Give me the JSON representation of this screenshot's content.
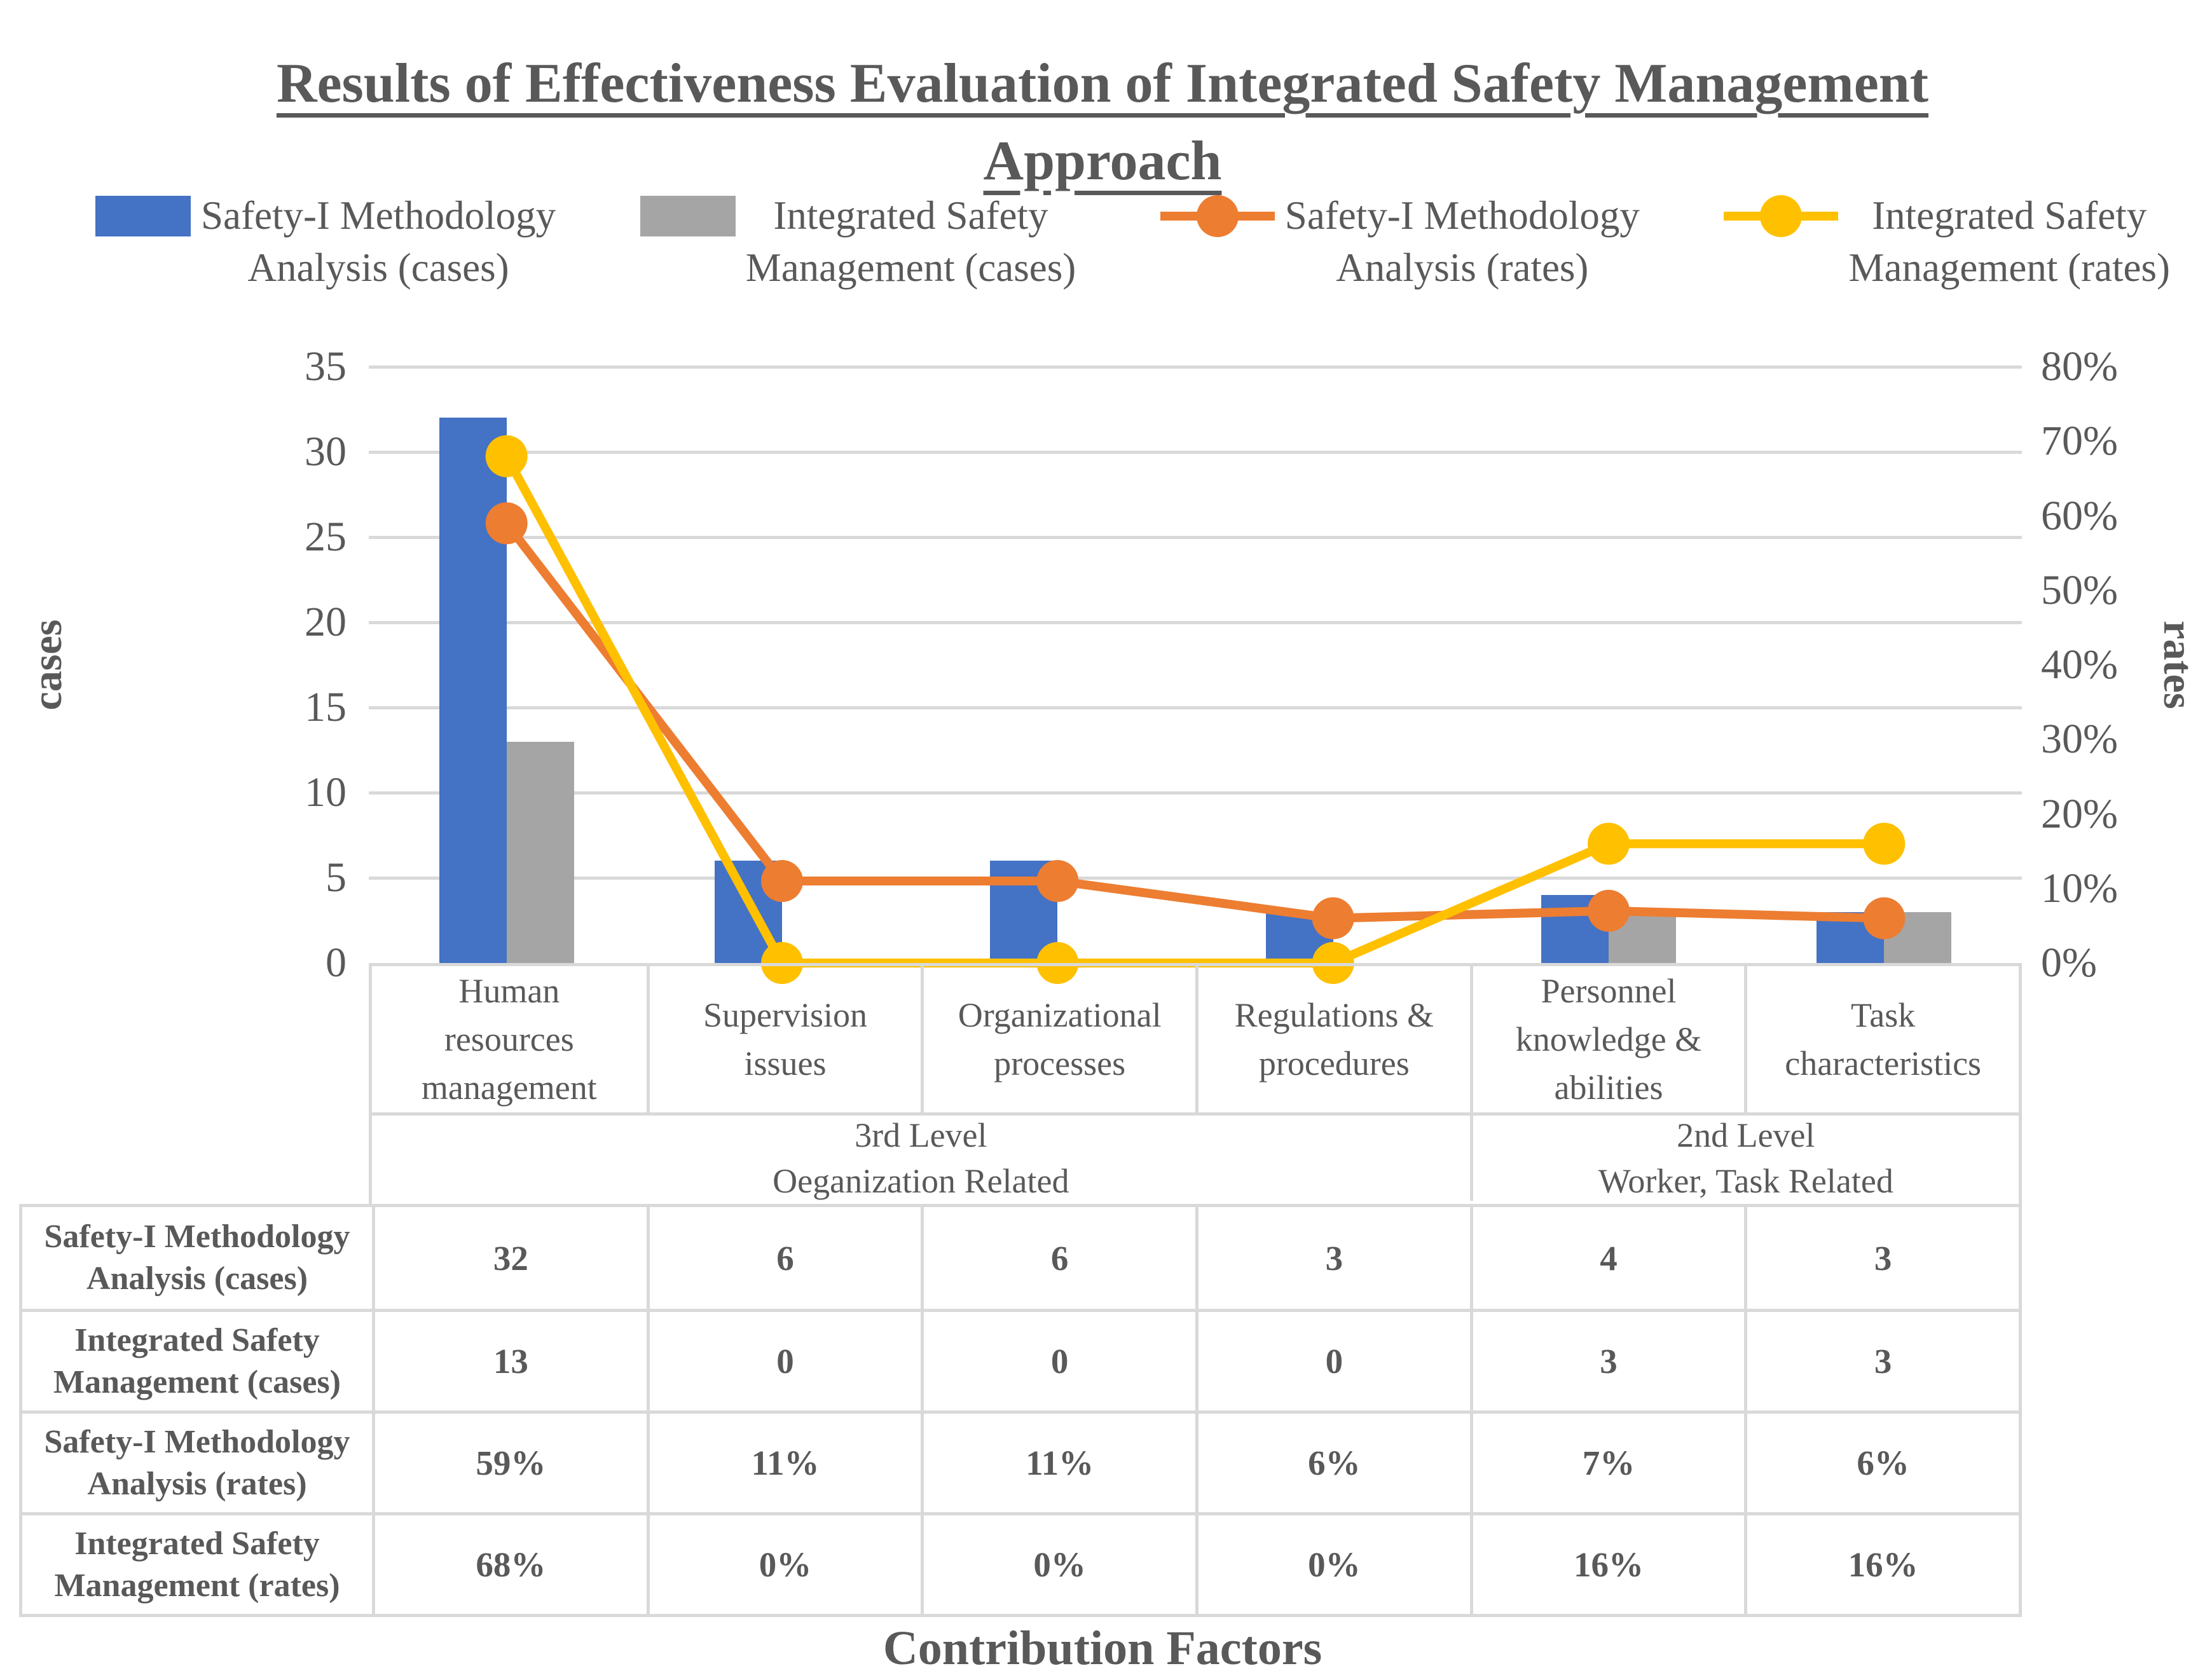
{
  "title": "Results of Effectiveness Evaluation of Integrated Safety Management\nApproach",
  "colors": {
    "safety1_cases_bar": "#4472C4",
    "integrated_cases_bar": "#A5A5A5",
    "safety1_rates_line": "#ED7D31",
    "integrated_rates_line": "#FFC000",
    "gridline": "#D9D9D9",
    "table_border": "#D9D9D9",
    "text": "#595959"
  },
  "legend": {
    "items": [
      {
        "label": "Safety-I Methodology\nAnalysis (cases)",
        "swatch": "bar",
        "color": "#4472C4"
      },
      {
        "label": "Integrated Safety\nManagement (cases)",
        "swatch": "bar",
        "color": "#A5A5A5"
      },
      {
        "label": "Safety-I Methodology\nAnalysis (rates)",
        "swatch": "line-marker",
        "color": "#ED7D31"
      },
      {
        "label": "Integrated Safety\nManagement (rates)",
        "swatch": "line-marker",
        "color": "#FFC000"
      }
    ]
  },
  "left_axis": {
    "title": "cases",
    "tick_values": [
      0,
      5,
      10,
      15,
      20,
      25,
      30,
      35
    ],
    "tick_labels": [
      "0",
      "5",
      "10",
      "15",
      "20",
      "25",
      "30",
      "35"
    ],
    "min": 0,
    "max": 35
  },
  "right_axis": {
    "title": "rates",
    "tick_values": [
      0,
      10,
      20,
      30,
      40,
      50,
      60,
      70,
      80
    ],
    "tick_labels": [
      "0%",
      "10%",
      "20%",
      "30%",
      "40%",
      "50%",
      "60%",
      "70%",
      "80%"
    ],
    "min": 0,
    "max": 80
  },
  "x_axis": {
    "title": "Contribution Factors",
    "category_labels": [
      "Human\nresources\nmanagement",
      "Supervision\nissues",
      "Organizational\nprocesses",
      "Regulations &\nprocedures",
      "Personnel\nknowledge &\nabilities",
      "Task\ncharacteristics"
    ],
    "groups": [
      {
        "label": "3rd Level\nOeganization Related",
        "span": 4
      },
      {
        "label": "2nd Level\nWorker, Task Related",
        "span": 2
      }
    ]
  },
  "chart_data": {
    "type": "combo",
    "title": "Results of Effectiveness Evaluation of Integrated Safety Management Approach",
    "xlabel": "Contribution Factors",
    "ylabel_left": "cases",
    "ylabel_right": "rates",
    "left_ylim": [
      0,
      35
    ],
    "right_ylim_percent": [
      0,
      80
    ],
    "grid": true,
    "legend_position": "top",
    "categories": [
      "Human resources management",
      "Supervision issues",
      "Organizational processes",
      "Regulations & procedures",
      "Personnel knowledge & abilities",
      "Task characteristics"
    ],
    "series": [
      {
        "name": "Safety-I Methodology Analysis (cases)",
        "type": "bar",
        "axis": "left",
        "color": "#4472C4",
        "values": [
          32,
          6,
          6,
          3,
          4,
          3
        ]
      },
      {
        "name": "Integrated Safety Management (cases)",
        "type": "bar",
        "axis": "left",
        "color": "#A5A5A5",
        "values": [
          13,
          0,
          0,
          0,
          3,
          3
        ]
      },
      {
        "name": "Safety-I Methodology Analysis (rates)",
        "type": "line",
        "axis": "right",
        "color": "#ED7D31",
        "values_percent": [
          59,
          11,
          11,
          6,
          7,
          6
        ]
      },
      {
        "name": "Integrated Safety Management (rates)",
        "type": "line",
        "axis": "right",
        "color": "#FFC000",
        "values_percent": [
          68,
          0,
          0,
          0,
          16,
          16
        ]
      }
    ]
  },
  "table": {
    "rows": [
      {
        "label": "Safety-I Methodology\nAnalysis (cases)",
        "values": [
          "32",
          "6",
          "6",
          "3",
          "4",
          "3"
        ]
      },
      {
        "label": "Integrated Safety\nManagement (cases)",
        "values": [
          "13",
          "0",
          "0",
          "0",
          "3",
          "3"
        ]
      },
      {
        "label": "Safety-I Methodology\nAnalysis (rates)",
        "values": [
          "59%",
          "11%",
          "11%",
          "6%",
          "7%",
          "6%"
        ]
      },
      {
        "label": "Integrated Safety\nManagement (rates)",
        "values": [
          "68%",
          "0%",
          "0%",
          "0%",
          "16%",
          "16%"
        ]
      }
    ]
  }
}
